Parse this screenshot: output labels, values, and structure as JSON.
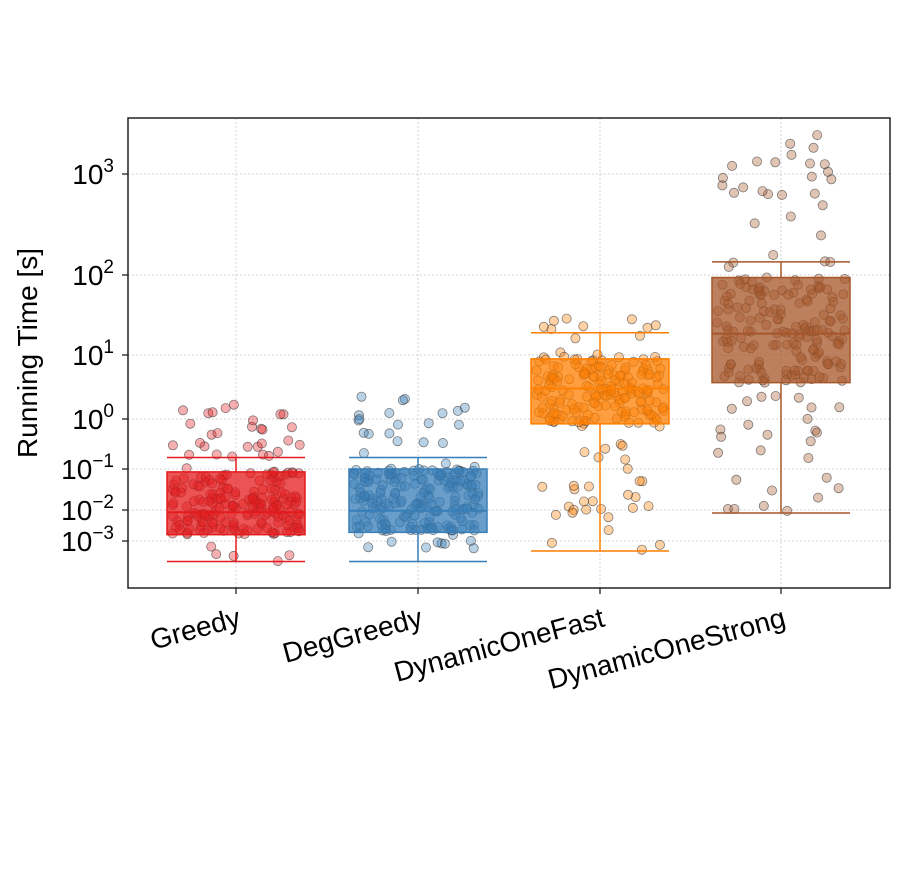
{
  "chart_data": {
    "type": "box",
    "ylabel": "Running Time [s]",
    "xlabel": "",
    "yscale": "symlog",
    "grid": true,
    "ylim": [
      0.0003,
      4000
    ],
    "ytick_labels": [
      {
        "base": "10",
        "exp": "−3",
        "value": 0.001
      },
      {
        "base": "10",
        "exp": "−2",
        "value": 0.01
      },
      {
        "base": "10",
        "exp": "−1",
        "value": 0.1
      },
      {
        "base": "10",
        "exp": "0",
        "value": 1
      },
      {
        "base": "10",
        "exp": "1",
        "value": 10
      },
      {
        "base": "10",
        "exp": "2",
        "value": 100
      },
      {
        "base": "10",
        "exp": "3",
        "value": 1000
      }
    ],
    "categories": [
      "Greedy",
      "DegGreedy",
      "DynamicOneFast",
      "DynamicOneStrong"
    ],
    "colors": [
      "#e41a1c",
      "#377eb8",
      "#ff7f00",
      "#a65628"
    ],
    "boxes": [
      {
        "name": "Greedy",
        "whislo": 0.00035,
        "q1": 0.0016,
        "med": 0.0085,
        "q3": 0.085,
        "whishi": 0.17,
        "min_pt": 0.00035,
        "max_pt": 2.3
      },
      {
        "name": "DegGreedy",
        "whislo": 0.00035,
        "q1": 0.0019,
        "med": 0.0095,
        "q3": 0.1,
        "whishi": 0.17,
        "min_pt": 0.00035,
        "max_pt": 2.4
      },
      {
        "name": "DynamicOneFast",
        "whislo": 0.0006,
        "q1": 0.8,
        "med": 3.0,
        "q3": 8.7,
        "whishi": 19,
        "min_pt": 0.0006,
        "max_pt": 37
      },
      {
        "name": "DynamicOneStrong",
        "whislo": 0.008,
        "q1": 3.7,
        "med": 18.5,
        "q3": 93,
        "whishi": 135,
        "min_pt": 0.008,
        "max_pt": 2500
      }
    ]
  }
}
